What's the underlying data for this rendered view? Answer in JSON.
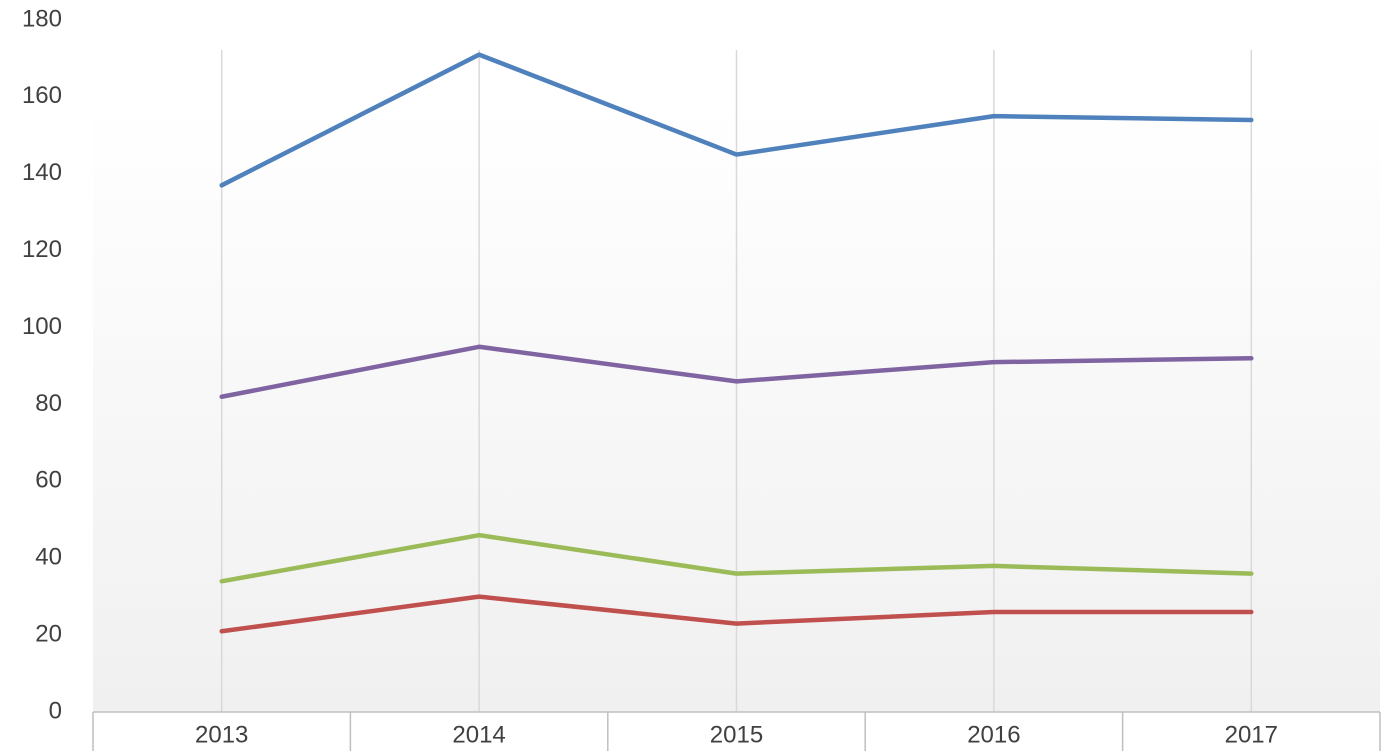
{
  "chart_data": {
    "type": "line",
    "categories": [
      "2013",
      "2014",
      "2015",
      "2016",
      "2017"
    ],
    "series": [
      {
        "color": "#4f81bd",
        "values": [
          137,
          171,
          145,
          155,
          154
        ]
      },
      {
        "color": "#8064a2",
        "values": [
          82,
          95,
          86,
          91,
          92
        ]
      },
      {
        "color": "#9bbb59",
        "values": [
          34,
          46,
          36,
          38,
          36
        ]
      },
      {
        "color": "#c0504d",
        "values": [
          21,
          30,
          23,
          26,
          26
        ]
      }
    ],
    "ylim": [
      0,
      180
    ],
    "yticks": [
      0,
      20,
      40,
      60,
      80,
      100,
      120,
      140,
      160,
      180
    ],
    "grid": "x"
  }
}
